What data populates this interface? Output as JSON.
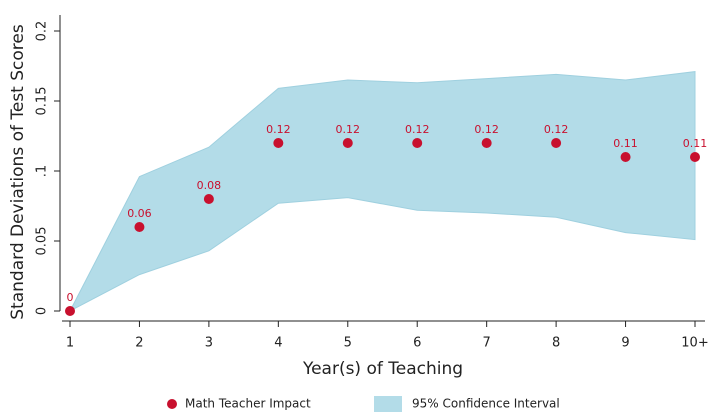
{
  "chart_data": {
    "type": "scatter",
    "xlabel": "Year(s) of Teaching",
    "ylabel": "Standard Deviations of Test Scores",
    "categories": [
      "1",
      "2",
      "3",
      "4",
      "5",
      "6",
      "7",
      "8",
      "9",
      "10+"
    ],
    "series": [
      {
        "name": "Math Teacher Impact",
        "color": "#c8102e",
        "values": [
          0,
          0.06,
          0.08,
          0.12,
          0.12,
          0.12,
          0.12,
          0.12,
          0.11,
          0.11
        ]
      }
    ],
    "band": {
      "name": "95% Confidence Interval",
      "color": "#b3dce8",
      "lower": [
        0,
        0.026,
        0.043,
        0.077,
        0.081,
        0.072,
        0.07,
        0.067,
        0.056,
        0.051
      ],
      "upper": [
        0,
        0.096,
        0.117,
        0.159,
        0.165,
        0.163,
        0.166,
        0.169,
        0.165,
        0.171
      ]
    },
    "ylim": [
      0,
      0.2
    ],
    "yticks": [
      0,
      0.05,
      {
        "value": 0.1,
        "label": ".1"
      },
      0.15,
      0.2
    ],
    "legend": "bottom"
  }
}
